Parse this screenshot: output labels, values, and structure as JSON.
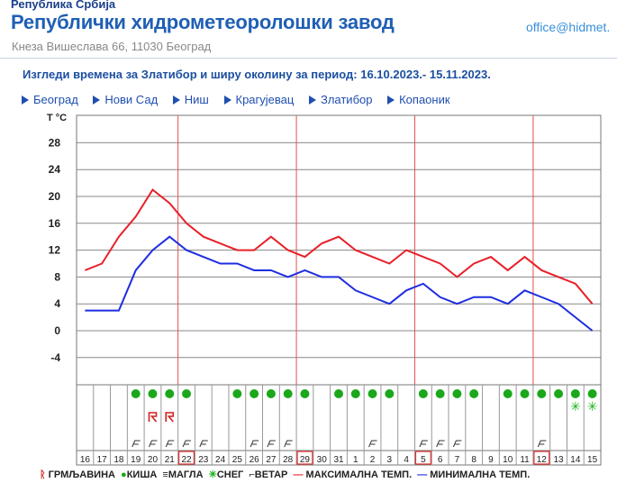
{
  "header": {
    "country": "Република Србија",
    "organization": "Републички хидрометеоролошки завод",
    "address": "Кнеза Вишеслава 66, 11030 Београд",
    "email": "office@hidmet."
  },
  "forecast_title": "Изгледи времена за Златибор и ширу околину за период: 16.10.2023.- 15.11.2023.",
  "cities": [
    {
      "label": "Београд"
    },
    {
      "label": "Нови Сад"
    },
    {
      "label": "Ниш"
    },
    {
      "label": "Крагујевац"
    },
    {
      "label": "Златибор"
    },
    {
      "label": "Копаоник"
    }
  ],
  "colors": {
    "max_temp": "#e8202a",
    "min_temp": "#1f2ee0",
    "rain": "#1aa81a",
    "storm": "#d21e1e",
    "snow": "#19b019",
    "grid": "#777777",
    "week_line": "#e35050"
  },
  "legend": {
    "storm": "ГРМЉАВИНА",
    "rain": "КИША",
    "fog": "МАГЛА",
    "snow": "СНЕГ",
    "wind": "ВЕТАР",
    "max": "МАКСИМАЛНА ТЕМП.",
    "min": "МИНИМАЛНА ТЕМП."
  },
  "chart_data": {
    "type": "area",
    "ylabel": "T °C",
    "ylim": [
      -4,
      28
    ],
    "y_ticks": [
      28,
      24,
      20,
      16,
      12,
      8,
      4,
      0,
      -4
    ],
    "grid": true,
    "categories": [
      "16",
      "17",
      "18",
      "19",
      "20",
      "21",
      "22",
      "23",
      "24",
      "25",
      "26",
      "27",
      "28",
      "29",
      "30",
      "31",
      "1",
      "2",
      "3",
      "4",
      "5",
      "6",
      "7",
      "8",
      "9",
      "10",
      "11",
      "12",
      "13",
      "14",
      "15"
    ],
    "highlighted_days": [
      "22",
      "29",
      "5",
      "12"
    ],
    "series": [
      {
        "name": "МАКСИМАЛНА ТЕМП.",
        "values": [
          9,
          10,
          14,
          17,
          21,
          19,
          16,
          14,
          13,
          12,
          12,
          14,
          12,
          11,
          13,
          14,
          12,
          11,
          10,
          12,
          11,
          10,
          8,
          10,
          11,
          9,
          11,
          9,
          8,
          7,
          4
        ]
      },
      {
        "name": "МИНИМАЛНА ТЕМП.",
        "values": [
          3,
          3,
          3,
          9,
          12,
          14,
          12,
          11,
          10,
          10,
          9,
          9,
          8,
          9,
          8,
          8,
          6,
          5,
          4,
          6,
          7,
          5,
          4,
          5,
          5,
          4,
          6,
          5,
          4,
          2,
          0
        ]
      }
    ],
    "rain": [
      0,
      0,
      0,
      1,
      1,
      1,
      1,
      0,
      0,
      1,
      1,
      1,
      1,
      1,
      0,
      1,
      1,
      1,
      1,
      0,
      1,
      1,
      1,
      1,
      0,
      1,
      1,
      1,
      1,
      1,
      1
    ],
    "storm": [
      0,
      0,
      0,
      0,
      1,
      1,
      0,
      0,
      0,
      0,
      0,
      0,
      0,
      0,
      0,
      0,
      0,
      0,
      0,
      0,
      0,
      0,
      0,
      0,
      0,
      0,
      0,
      0,
      0,
      0,
      0
    ],
    "snow": [
      0,
      0,
      0,
      0,
      0,
      0,
      0,
      0,
      0,
      0,
      0,
      0,
      0,
      0,
      0,
      0,
      0,
      0,
      0,
      0,
      0,
      0,
      0,
      0,
      0,
      0,
      0,
      0,
      0,
      1,
      1
    ],
    "wind": [
      0,
      0,
      0,
      1,
      1,
      1,
      1,
      1,
      0,
      0,
      1,
      1,
      1,
      0,
      0,
      0,
      0,
      1,
      0,
      0,
      1,
      1,
      1,
      0,
      0,
      0,
      0,
      1,
      0,
      0,
      0
    ]
  }
}
